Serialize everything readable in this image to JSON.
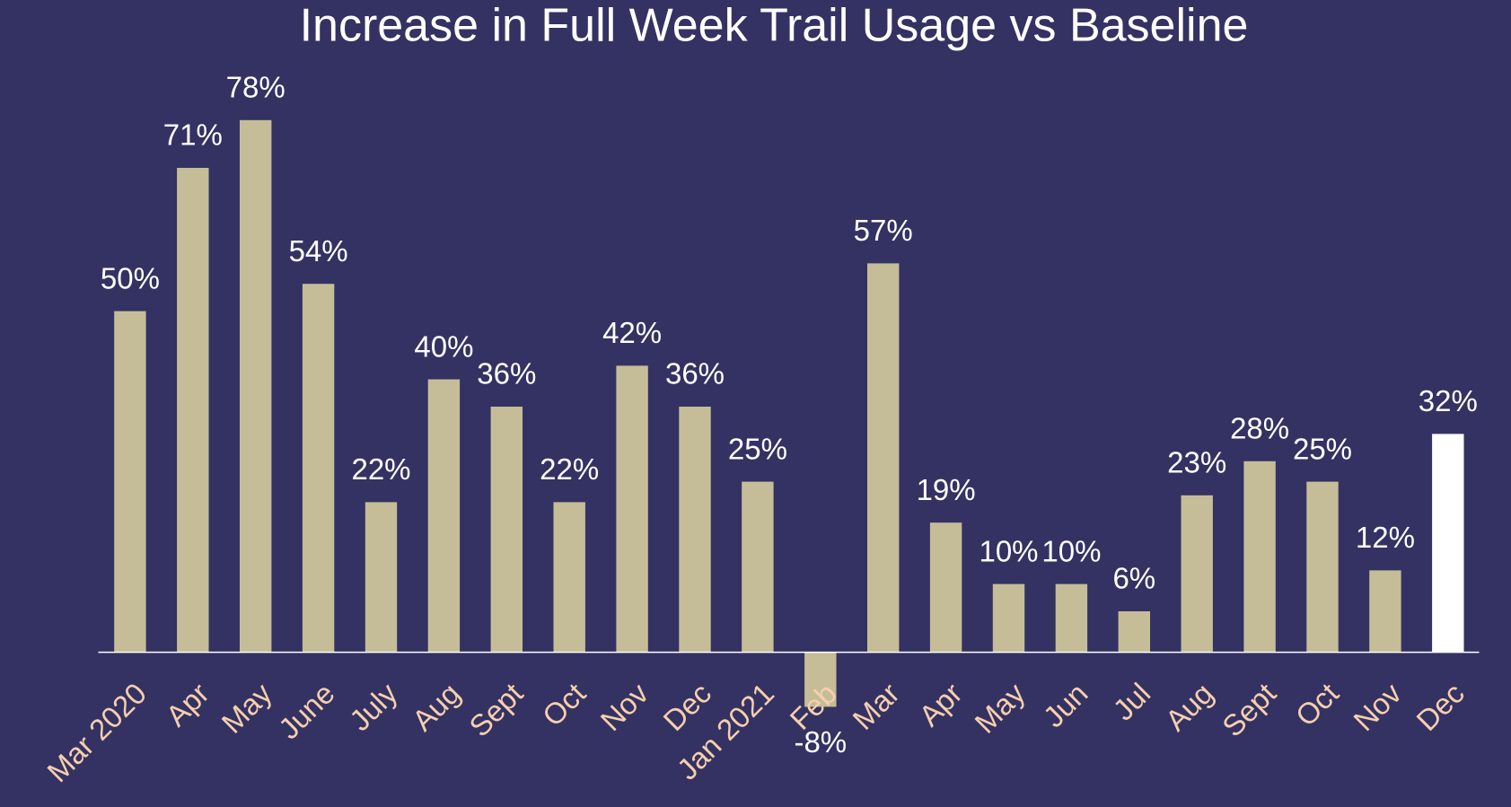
{
  "chart_data": {
    "type": "bar",
    "title": "Increase in Full Week Trail Usage vs Baseline",
    "categories": [
      "Mar 2020",
      "Apr",
      "May",
      "June",
      "July",
      "Aug",
      "Sept",
      "Oct",
      "Nov",
      "Dec",
      "Jan 2021",
      "Feb",
      "Mar",
      "Apr",
      "May",
      "Jun",
      "Jul",
      "Aug",
      "Sept",
      "Oct",
      "Nov",
      "Dec"
    ],
    "values": [
      50,
      71,
      78,
      54,
      22,
      40,
      36,
      22,
      42,
      36,
      25,
      -8,
      57,
      19,
      10,
      10,
      6,
      23,
      28,
      25,
      12,
      32
    ],
    "value_labels": [
      "50%",
      "71%",
      "78%",
      "54%",
      "22%",
      "40%",
      "36%",
      "22%",
      "42%",
      "36%",
      "25%",
      "-8%",
      "57%",
      "19%",
      "10%",
      "10%",
      "6%",
      "23%",
      "28%",
      "25%",
      "12%",
      "32%"
    ],
    "colors": [
      "#c5bd97",
      "#c5bd97",
      "#c5bd97",
      "#c5bd97",
      "#c5bd97",
      "#c5bd97",
      "#c5bd97",
      "#c5bd97",
      "#c5bd97",
      "#c5bd97",
      "#c5bd97",
      "#c5bd97",
      "#c5bd97",
      "#c5bd97",
      "#c5bd97",
      "#c5bd97",
      "#c5bd97",
      "#c5bd97",
      "#c5bd97",
      "#c5bd97",
      "#c5bd97",
      "#ffffff"
    ],
    "ylim": [
      -10,
      80
    ]
  }
}
